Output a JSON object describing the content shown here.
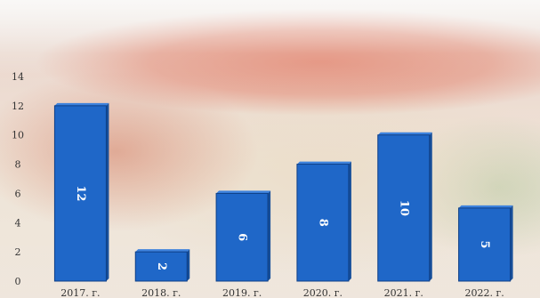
{
  "colors": {
    "bar": "#1f67c8",
    "bar_edge": "#0e3f86",
    "bar_side": "#174f9a",
    "label": "#ffffff",
    "axis_text": "#333333"
  },
  "chart_data": {
    "type": "bar",
    "categories": [
      "2017. г.",
      "2018. г.",
      "2019. г.",
      "2020. г.",
      "2021. г.",
      "2022. г."
    ],
    "values": [
      12,
      2,
      6,
      8,
      10,
      5
    ],
    "data_labels": [
      "12",
      "2",
      "6",
      "8",
      "10",
      "5"
    ],
    "y_ticks": [
      "0",
      "2",
      "4",
      "6",
      "8",
      "10",
      "12",
      "14"
    ],
    "ylim": [
      0,
      14
    ],
    "grid": false,
    "legend": "none",
    "title": "",
    "xlabel": "",
    "ylabel": ""
  }
}
